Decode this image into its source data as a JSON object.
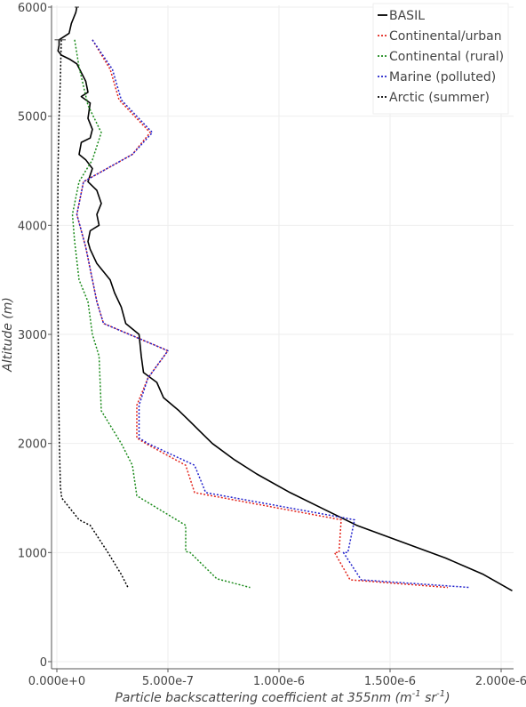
{
  "chart_data": {
    "type": "line",
    "xlabel": "Particle backscattering coefficient at 355nm",
    "xlabel_unit_parts": [
      "(m",
      "-1",
      " sr",
      "-1",
      ")"
    ],
    "ylabel": "Altitude",
    "ylabel_unit": "(m)",
    "xlim": [
      -5e-08,
      2.06e-06
    ],
    "ylim": [
      -50,
      6000
    ],
    "x_ticks": [
      0,
      5e-07,
      1e-06,
      1.5e-06,
      2e-06
    ],
    "x_tick_labels": [
      "0.000e+0",
      "5.000e-7",
      "1.000e-6",
      "1.500e-6",
      "2.000e-6"
    ],
    "y_ticks": [
      0,
      1000,
      2000,
      3000,
      4000,
      5000,
      6000
    ],
    "y_tick_labels": [
      "0",
      "1000",
      "2000",
      "3000",
      "4000",
      "5000",
      "6000"
    ],
    "grid": true,
    "legend_position": "top-right",
    "series": [
      {
        "name": "BASIL",
        "color": "#000000",
        "style": "solid",
        "points": [
          [
            9e-08,
            6000
          ],
          [
            8.5e-08,
            5950
          ],
          [
            6.5e-08,
            5850
          ],
          [
            5.5e-08,
            5760
          ],
          [
            1e-08,
            5700
          ],
          [
            1e-08,
            5650
          ],
          [
            5e-09,
            5600
          ],
          [
            2e-08,
            5560
          ],
          [
            6e-08,
            5520
          ],
          [
            9e-08,
            5480
          ],
          [
            1.1e-07,
            5400
          ],
          [
            1.3e-07,
            5320
          ],
          [
            1.4e-07,
            5220
          ],
          [
            1.1e-07,
            5180
          ],
          [
            1.5e-07,
            5120
          ],
          [
            1.4e-07,
            4980
          ],
          [
            1.6e-07,
            4880
          ],
          [
            1.5e-07,
            4800
          ],
          [
            1.1e-07,
            4760
          ],
          [
            1e-07,
            4650
          ],
          [
            1.3e-07,
            4600
          ],
          [
            1.6e-07,
            4520
          ],
          [
            1.4e-07,
            4400
          ],
          [
            1.8e-07,
            4320
          ],
          [
            2e-07,
            4200
          ],
          [
            1.8e-07,
            4100
          ],
          [
            1.9e-07,
            4000
          ],
          [
            1.5e-07,
            3950
          ],
          [
            1.4e-07,
            3850
          ],
          [
            1.5e-07,
            3780
          ],
          [
            1.8e-07,
            3650
          ],
          [
            2.4e-07,
            3500
          ],
          [
            2.6e-07,
            3380
          ],
          [
            2.9e-07,
            3250
          ],
          [
            3.1e-07,
            3100
          ],
          [
            3.7e-07,
            3000
          ],
          [
            3.8e-07,
            2800
          ],
          [
            3.9e-07,
            2650
          ],
          [
            4.5e-07,
            2560
          ],
          [
            4.8e-07,
            2420
          ],
          [
            5.5e-07,
            2300
          ],
          [
            6e-07,
            2200
          ],
          [
            6.5e-07,
            2100
          ],
          [
            7e-07,
            2000
          ],
          [
            8e-07,
            1850
          ],
          [
            9e-07,
            1720
          ],
          [
            1.05e-06,
            1550
          ],
          [
            1.2e-06,
            1400
          ],
          [
            1.35e-06,
            1250
          ],
          [
            1.55e-06,
            1100
          ],
          [
            1.75e-06,
            950
          ],
          [
            1.92e-06,
            800
          ],
          [
            2.05e-06,
            650
          ]
        ]
      },
      {
        "name": "Continental/urban",
        "color": "#e3241b",
        "style": "dotted",
        "points": [
          [
            1.6e-07,
            5700
          ],
          [
            2.4e-07,
            5430
          ],
          [
            2.8e-07,
            5150
          ],
          [
            4.2e-07,
            4850
          ],
          [
            3.4e-07,
            4650
          ],
          [
            1.2e-07,
            4400
          ],
          [
            9e-08,
            4100
          ],
          [
            1.3e-07,
            3800
          ],
          [
            1.8e-07,
            3300
          ],
          [
            2.1e-07,
            3100
          ],
          [
            5e-07,
            2850
          ],
          [
            4.1e-07,
            2600
          ],
          [
            3.6e-07,
            2350
          ],
          [
            3.6e-07,
            2050
          ],
          [
            4e-07,
            2000
          ],
          [
            5.8e-07,
            1800
          ],
          [
            6.2e-07,
            1550
          ],
          [
            1.28e-06,
            1300
          ],
          [
            1.27e-06,
            1000
          ],
          [
            1.25e-06,
            1000
          ],
          [
            1.32e-06,
            750
          ],
          [
            1.76e-06,
            680
          ]
        ]
      },
      {
        "name": "Continental (rural)",
        "color": "#1a8a1a",
        "style": "dotted",
        "points": [
          [
            8e-08,
            5700
          ],
          [
            1e-07,
            5450
          ],
          [
            1.4e-07,
            5100
          ],
          [
            2e-07,
            4850
          ],
          [
            1.6e-07,
            4600
          ],
          [
            1e-07,
            4400
          ],
          [
            9e-08,
            4300
          ],
          [
            7e-08,
            4100
          ],
          [
            8e-08,
            3850
          ],
          [
            1e-07,
            3500
          ],
          [
            1.4e-07,
            3300
          ],
          [
            1.6e-07,
            3000
          ],
          [
            1.9e-07,
            2800
          ],
          [
            2e-07,
            2300
          ],
          [
            2.9e-07,
            2000
          ],
          [
            3.4e-07,
            1800
          ],
          [
            3.6e-07,
            1520
          ],
          [
            5.8e-07,
            1250
          ],
          [
            5.8e-07,
            1010
          ],
          [
            6e-07,
            1000
          ],
          [
            7.2e-07,
            760
          ],
          [
            8.7e-07,
            680
          ]
        ]
      },
      {
        "name": "Marine (polluted)",
        "color": "#2222cc",
        "style": "dotted",
        "points": [
          [
            1.6e-07,
            5700
          ],
          [
            2.5e-07,
            5430
          ],
          [
            2.9e-07,
            5150
          ],
          [
            4.3e-07,
            4850
          ],
          [
            3.4e-07,
            4650
          ],
          [
            1.2e-07,
            4400
          ],
          [
            9e-08,
            4100
          ],
          [
            1.3e-07,
            3800
          ],
          [
            1.8e-07,
            3300
          ],
          [
            2.1e-07,
            3100
          ],
          [
            5e-07,
            2850
          ],
          [
            4.1e-07,
            2600
          ],
          [
            3.7e-07,
            2350
          ],
          [
            3.7e-07,
            2050
          ],
          [
            4.1e-07,
            2000
          ],
          [
            6.2e-07,
            1800
          ],
          [
            6.7e-07,
            1550
          ],
          [
            1.34e-06,
            1300
          ],
          [
            1.31e-06,
            1000
          ],
          [
            1.29e-06,
            1000
          ],
          [
            1.37e-06,
            750
          ],
          [
            1.86e-06,
            680
          ]
        ]
      },
      {
        "name": "Arctic (summer)",
        "color": "#000000",
        "style": "dotted",
        "points": [
          [
            2e-08,
            5700
          ],
          [
            1.5e-08,
            5300
          ],
          [
            1e-08,
            5000
          ],
          [
            5e-09,
            4500
          ],
          [
            4e-09,
            4000
          ],
          [
            5e-09,
            3500
          ],
          [
            6e-09,
            3000
          ],
          [
            8e-09,
            2500
          ],
          [
            1.1e-08,
            2000
          ],
          [
            1.6e-08,
            1600
          ],
          [
            2.2e-08,
            1500
          ],
          [
            1e-07,
            1300
          ],
          [
            1.5e-07,
            1250
          ],
          [
            2.3e-07,
            1000
          ],
          [
            2.6e-07,
            900
          ],
          [
            2.9e-07,
            800
          ],
          [
            3.2e-07,
            680
          ]
        ]
      }
    ]
  }
}
